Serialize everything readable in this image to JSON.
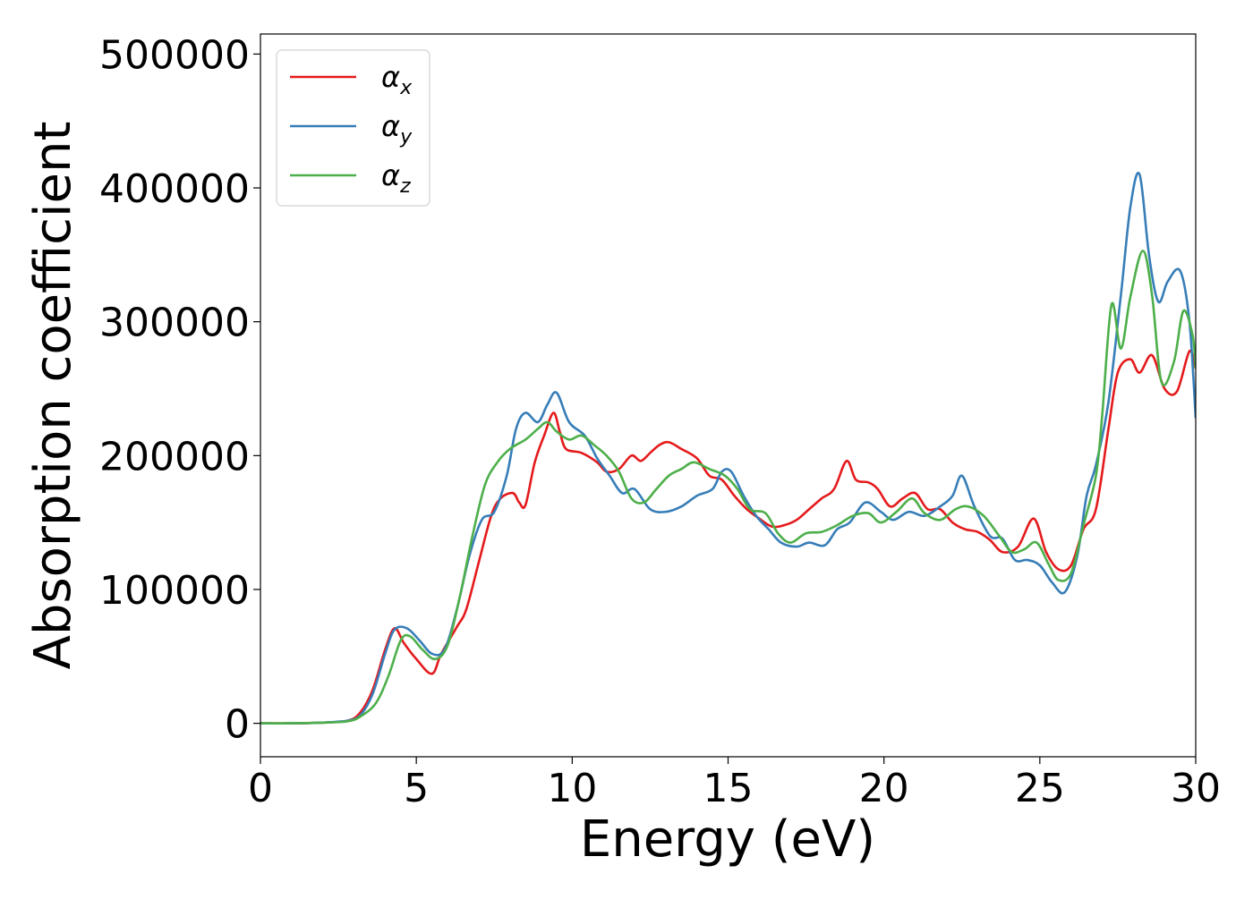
{
  "chart_data": {
    "type": "line",
    "title": "",
    "xlabel": "Energy (eV)",
    "ylabel": "Absorption coefficient",
    "xlim": [
      0,
      30
    ],
    "ylim": [
      -25000,
      515000
    ],
    "x_ticks": [
      "0",
      "5",
      "10",
      "15",
      "20",
      "25",
      "30"
    ],
    "y_ticks": [
      "0",
      "100000",
      "200000",
      "300000",
      "400000",
      "500000"
    ],
    "legend_placement": "top-left",
    "grid": false,
    "series": [
      {
        "name": "α",
        "subscript": "x",
        "color": "#e41a1c",
        "points": [
          [
            0,
            0
          ],
          [
            1,
            0
          ],
          [
            2,
            500
          ],
          [
            2.8,
            2000
          ],
          [
            3.2,
            8000
          ],
          [
            3.6,
            25000
          ],
          [
            4.0,
            55000
          ],
          [
            4.3,
            71000
          ],
          [
            4.6,
            60000
          ],
          [
            5.0,
            48000
          ],
          [
            5.5,
            37000
          ],
          [
            5.8,
            52000
          ],
          [
            6.3,
            72000
          ],
          [
            6.6,
            85000
          ],
          [
            7.0,
            120000
          ],
          [
            7.4,
            155000
          ],
          [
            7.7,
            168000
          ],
          [
            8.1,
            172000
          ],
          [
            8.3,
            165000
          ],
          [
            8.5,
            163000
          ],
          [
            8.8,
            195000
          ],
          [
            9.1,
            215000
          ],
          [
            9.4,
            232000
          ],
          [
            9.6,
            218000
          ],
          [
            9.8,
            205000
          ],
          [
            10.3,
            202000
          ],
          [
            10.8,
            195000
          ],
          [
            11.1,
            188000
          ],
          [
            11.5,
            190000
          ],
          [
            11.9,
            200000
          ],
          [
            12.2,
            196000
          ],
          [
            12.5,
            202000
          ],
          [
            12.8,
            208000
          ],
          [
            13.1,
            210000
          ],
          [
            13.5,
            205000
          ],
          [
            14.0,
            198000
          ],
          [
            14.4,
            185000
          ],
          [
            14.8,
            182000
          ],
          [
            15.2,
            170000
          ],
          [
            15.6,
            160000
          ],
          [
            16.0,
            153000
          ],
          [
            16.4,
            147000
          ],
          [
            16.8,
            148000
          ],
          [
            17.2,
            152000
          ],
          [
            17.6,
            160000
          ],
          [
            18.0,
            168000
          ],
          [
            18.4,
            175000
          ],
          [
            18.8,
            196000
          ],
          [
            19.1,
            182000
          ],
          [
            19.5,
            180000
          ],
          [
            19.8,
            175000
          ],
          [
            20.2,
            162000
          ],
          [
            20.6,
            168000
          ],
          [
            21.0,
            172000
          ],
          [
            21.4,
            160000
          ],
          [
            21.8,
            160000
          ],
          [
            22.2,
            150000
          ],
          [
            22.6,
            145000
          ],
          [
            23.0,
            143000
          ],
          [
            23.4,
            137000
          ],
          [
            23.8,
            128000
          ],
          [
            24.3,
            132000
          ],
          [
            24.8,
            153000
          ],
          [
            25.2,
            128000
          ],
          [
            25.6,
            115000
          ],
          [
            26.0,
            118000
          ],
          [
            26.4,
            145000
          ],
          [
            26.8,
            160000
          ],
          [
            27.2,
            220000
          ],
          [
            27.5,
            262000
          ],
          [
            27.9,
            272000
          ],
          [
            28.2,
            262000
          ],
          [
            28.6,
            275000
          ],
          [
            29.0,
            250000
          ],
          [
            29.4,
            248000
          ],
          [
            29.8,
            278000
          ],
          [
            30,
            265000
          ]
        ]
      },
      {
        "name": "α",
        "subscript": "y",
        "color": "#377eb8",
        "points": [
          [
            0,
            0
          ],
          [
            1,
            0
          ],
          [
            2,
            500
          ],
          [
            2.8,
            2000
          ],
          [
            3.2,
            6000
          ],
          [
            3.6,
            22000
          ],
          [
            4.0,
            52000
          ],
          [
            4.3,
            70000
          ],
          [
            4.7,
            71000
          ],
          [
            5.1,
            62000
          ],
          [
            5.5,
            52000
          ],
          [
            5.9,
            55000
          ],
          [
            6.3,
            85000
          ],
          [
            6.7,
            125000
          ],
          [
            7.1,
            152000
          ],
          [
            7.5,
            158000
          ],
          [
            7.9,
            185000
          ],
          [
            8.2,
            220000
          ],
          [
            8.5,
            232000
          ],
          [
            8.9,
            225000
          ],
          [
            9.2,
            238000
          ],
          [
            9.5,
            247000
          ],
          [
            9.9,
            225000
          ],
          [
            10.4,
            215000
          ],
          [
            10.8,
            198000
          ],
          [
            11.2,
            185000
          ],
          [
            11.6,
            172000
          ],
          [
            12.0,
            175000
          ],
          [
            12.5,
            160000
          ],
          [
            13.0,
            158000
          ],
          [
            13.5,
            162000
          ],
          [
            14.0,
            170000
          ],
          [
            14.5,
            175000
          ],
          [
            14.8,
            188000
          ],
          [
            15.1,
            188000
          ],
          [
            15.5,
            170000
          ],
          [
            15.9,
            155000
          ],
          [
            16.3,
            145000
          ],
          [
            16.7,
            135000
          ],
          [
            17.2,
            132000
          ],
          [
            17.6,
            135000
          ],
          [
            18.1,
            133000
          ],
          [
            18.5,
            145000
          ],
          [
            18.9,
            150000
          ],
          [
            19.4,
            165000
          ],
          [
            19.9,
            158000
          ],
          [
            20.3,
            152000
          ],
          [
            20.8,
            158000
          ],
          [
            21.3,
            155000
          ],
          [
            21.8,
            162000
          ],
          [
            22.2,
            170000
          ],
          [
            22.5,
            185000
          ],
          [
            22.9,
            162000
          ],
          [
            23.4,
            140000
          ],
          [
            23.8,
            138000
          ],
          [
            24.2,
            122000
          ],
          [
            24.6,
            122000
          ],
          [
            25.0,
            118000
          ],
          [
            25.4,
            105000
          ],
          [
            25.8,
            98000
          ],
          [
            26.2,
            125000
          ],
          [
            26.5,
            170000
          ],
          [
            26.8,
            193000
          ],
          [
            27.2,
            240000
          ],
          [
            27.6,
            320000
          ],
          [
            27.9,
            385000
          ],
          [
            28.2,
            410000
          ],
          [
            28.5,
            350000
          ],
          [
            28.8,
            315000
          ],
          [
            29.1,
            330000
          ],
          [
            29.5,
            338000
          ],
          [
            29.8,
            300000
          ],
          [
            30,
            228000
          ]
        ]
      },
      {
        "name": "α",
        "subscript": "z",
        "color": "#4daf4a",
        "points": [
          [
            0,
            0
          ],
          [
            1,
            0
          ],
          [
            2,
            500
          ],
          [
            2.8,
            1500
          ],
          [
            3.2,
            5000
          ],
          [
            3.7,
            15000
          ],
          [
            4.1,
            35000
          ],
          [
            4.5,
            62000
          ],
          [
            4.8,
            65000
          ],
          [
            5.2,
            55000
          ],
          [
            5.6,
            48000
          ],
          [
            6.0,
            58000
          ],
          [
            6.4,
            95000
          ],
          [
            6.8,
            140000
          ],
          [
            7.2,
            178000
          ],
          [
            7.6,
            195000
          ],
          [
            8.0,
            205000
          ],
          [
            8.5,
            212000
          ],
          [
            8.9,
            220000
          ],
          [
            9.2,
            225000
          ],
          [
            9.5,
            218000
          ],
          [
            9.9,
            212000
          ],
          [
            10.3,
            215000
          ],
          [
            10.7,
            208000
          ],
          [
            11.1,
            200000
          ],
          [
            11.5,
            188000
          ],
          [
            11.9,
            168000
          ],
          [
            12.3,
            165000
          ],
          [
            12.7,
            175000
          ],
          [
            13.1,
            185000
          ],
          [
            13.5,
            190000
          ],
          [
            13.9,
            195000
          ],
          [
            14.4,
            190000
          ],
          [
            14.9,
            185000
          ],
          [
            15.3,
            175000
          ],
          [
            15.7,
            160000
          ],
          [
            16.2,
            157000
          ],
          [
            16.6,
            142000
          ],
          [
            17.0,
            135000
          ],
          [
            17.5,
            142000
          ],
          [
            18.0,
            143000
          ],
          [
            18.5,
            148000
          ],
          [
            19.0,
            155000
          ],
          [
            19.5,
            157000
          ],
          [
            19.9,
            150000
          ],
          [
            20.4,
            158000
          ],
          [
            20.9,
            168000
          ],
          [
            21.3,
            157000
          ],
          [
            21.8,
            152000
          ],
          [
            22.3,
            160000
          ],
          [
            22.7,
            162000
          ],
          [
            23.2,
            155000
          ],
          [
            23.7,
            140000
          ],
          [
            24.1,
            128000
          ],
          [
            24.5,
            130000
          ],
          [
            24.9,
            135000
          ],
          [
            25.3,
            118000
          ],
          [
            25.6,
            107000
          ],
          [
            26.0,
            112000
          ],
          [
            26.4,
            148000
          ],
          [
            26.8,
            185000
          ],
          [
            27.0,
            230000
          ],
          [
            27.3,
            313000
          ],
          [
            27.6,
            280000
          ],
          [
            27.9,
            318000
          ],
          [
            28.3,
            353000
          ],
          [
            28.6,
            320000
          ],
          [
            28.9,
            255000
          ],
          [
            29.3,
            270000
          ],
          [
            29.6,
            308000
          ],
          [
            29.9,
            290000
          ],
          [
            30,
            265000
          ]
        ]
      }
    ]
  }
}
